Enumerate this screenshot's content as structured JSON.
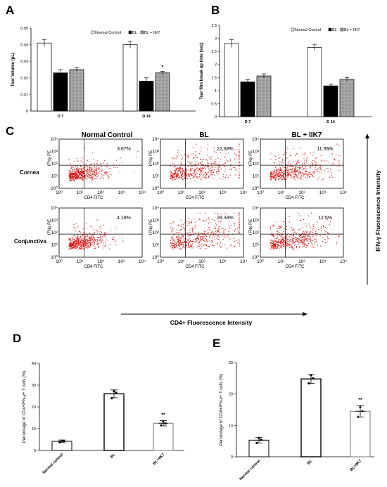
{
  "panels": {
    "A": {
      "label": "A"
    },
    "B": {
      "label": "B"
    },
    "C": {
      "label": "C"
    },
    "D": {
      "label": "D"
    },
    "E": {
      "label": "E"
    }
  },
  "legend": {
    "normal": "Normal Control",
    "bl": "BL",
    "blik7": "BL + IIK7"
  },
  "flow": {
    "columns": [
      "Normal Control",
      "BL",
      "BL + IIK7"
    ],
    "rows": [
      "Cornea",
      "Conjunctiva"
    ],
    "percentages": [
      [
        "3.67%",
        "22.68%",
        "11.35%"
      ],
      [
        "4.18%",
        "23.34%",
        "12.5%"
      ]
    ],
    "xaxis": "CD4 FITC",
    "yaxis": "IFNγ PE",
    "x_big": "CD4+ Fluorescence Intensity",
    "y_big": "IFN-γ Fluorescence Intensity",
    "ticks": [
      "10⁰",
      "10¹",
      "10²",
      "10³",
      "10⁴"
    ]
  },
  "chart_data": [
    {
      "panel": "A",
      "type": "bar",
      "categories": [
        "D 7",
        "D 14"
      ],
      "series": [
        {
          "name": "Normal Control",
          "values": [
            0.041,
            0.04
          ],
          "errors": [
            0.002,
            0.002
          ]
        },
        {
          "name": "BL",
          "values": [
            0.023,
            0.018
          ],
          "errors": [
            0.002,
            0.002
          ]
        },
        {
          "name": "BL + IIK7",
          "values": [
            0.025,
            0.023
          ],
          "errors": [
            0.001,
            0.001
          ]
        }
      ],
      "ylabel": "Tear Volume (μL)",
      "ylim": [
        0,
        0.05
      ],
      "yticks": [
        "0",
        "0.01",
        "0.02",
        "0.03",
        "0.04",
        "0.05"
      ],
      "annotations": [
        {
          "text": "*",
          "category": "D 14",
          "series": "BL + IIK7"
        }
      ],
      "legend": "top-right"
    },
    {
      "panel": "B",
      "type": "bar",
      "categories": [
        "D 7",
        "D 14"
      ],
      "series": [
        {
          "name": "Normal Control",
          "values": [
            2.8,
            2.65
          ],
          "errors": [
            0.15,
            0.12
          ]
        },
        {
          "name": "BL",
          "values": [
            1.33,
            1.18
          ],
          "errors": [
            0.08,
            0.06
          ]
        },
        {
          "name": "BL + IIK7",
          "values": [
            1.56,
            1.43
          ],
          "errors": [
            0.08,
            0.06
          ]
        }
      ],
      "ylabel": "Tear film break-up time (sec)",
      "ylim": [
        0,
        3.5
      ],
      "yticks": [
        "0",
        "0.5",
        "1",
        "1.5",
        "2",
        "2.5",
        "3",
        "3.5"
      ],
      "legend": "top-right"
    },
    {
      "panel": "D",
      "type": "bar",
      "categories": [
        "Normal control",
        "BL",
        "BL+IIK7"
      ],
      "values": [
        4.2,
        26.0,
        12.5
      ],
      "errors": [
        0.6,
        1.8,
        1.2
      ],
      "points": [
        [
          3.8,
          4.3,
          4.5
        ],
        [
          24.0,
          26.5,
          27.2
        ],
        [
          11.6,
          12.5,
          13.3
        ]
      ],
      "ylabel": "Percentage of CD4+IFN-γ+ T cells (%)",
      "ylim": [
        0,
        40
      ],
      "yticks": [
        "0",
        "10",
        "20",
        "30",
        "40"
      ],
      "annotations": [
        {
          "text": "**",
          "category": "BL+IIK7"
        }
      ]
    },
    {
      "panel": "E",
      "type": "bar",
      "categories": [
        "Normal control",
        "BL",
        "BL+IIK7"
      ],
      "values": [
        5.3,
        24.8,
        14.5
      ],
      "errors": [
        0.9,
        1.4,
        1.8
      ],
      "points": [
        [
          4.4,
          5.4,
          6.0
        ],
        [
          23.4,
          25.0,
          26.0
        ],
        [
          12.8,
          14.6,
          16.0
        ]
      ],
      "ylabel": "Percentage of CD4+IFN-γ+ T cells (%)",
      "ylim": [
        0,
        30
      ],
      "yticks": [
        "0",
        "10",
        "20",
        "30"
      ],
      "annotations": [
        {
          "text": "**",
          "category": "BL+IIK7"
        }
      ]
    }
  ]
}
